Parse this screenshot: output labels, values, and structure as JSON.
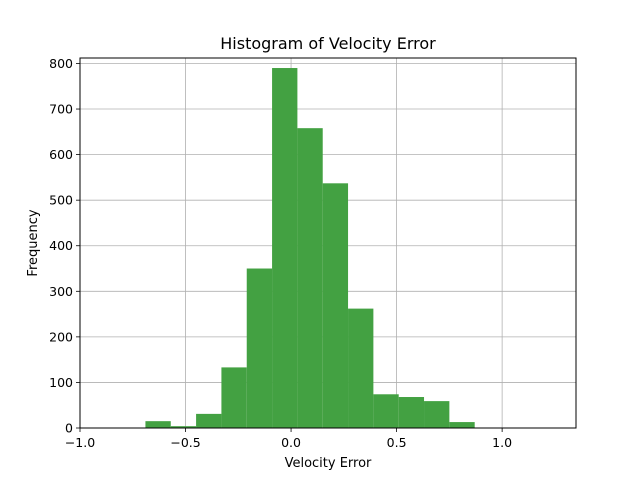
{
  "chart_data": {
    "type": "bar",
    "title": "Histogram of Velocity Error",
    "xlabel": "Velocity Error",
    "ylabel": "Frequency",
    "xlim": [
      -1.0,
      1.35
    ],
    "ylim": [
      0,
      812
    ],
    "grid": true,
    "bar_color": "#43a142",
    "x_ticks": [
      {
        "value": -1.0,
        "label": "−1.0"
      },
      {
        "value": -0.5,
        "label": "−0.5"
      },
      {
        "value": 0.0,
        "label": "0.0"
      },
      {
        "value": 0.5,
        "label": "0.5"
      },
      {
        "value": 1.0,
        "label": "1.0"
      }
    ],
    "y_ticks": [
      {
        "value": 0,
        "label": "0"
      },
      {
        "value": 100,
        "label": "100"
      },
      {
        "value": 200,
        "label": "200"
      },
      {
        "value": 300,
        "label": "300"
      },
      {
        "value": 400,
        "label": "400"
      },
      {
        "value": 500,
        "label": "500"
      },
      {
        "value": 600,
        "label": "600"
      },
      {
        "value": 700,
        "label": "700"
      },
      {
        "value": 800,
        "label": "800"
      }
    ],
    "bins": [
      {
        "x0": -0.69,
        "x1": -0.57,
        "count": 15
      },
      {
        "x0": -0.57,
        "x1": -0.45,
        "count": 4
      },
      {
        "x0": -0.45,
        "x1": -0.33,
        "count": 31
      },
      {
        "x0": -0.33,
        "x1": -0.21,
        "count": 133
      },
      {
        "x0": -0.21,
        "x1": -0.09,
        "count": 350
      },
      {
        "x0": -0.09,
        "x1": 0.03,
        "count": 790
      },
      {
        "x0": 0.03,
        "x1": 0.15,
        "count": 658
      },
      {
        "x0": 0.15,
        "x1": 0.27,
        "count": 537
      },
      {
        "x0": 0.27,
        "x1": 0.39,
        "count": 262
      },
      {
        "x0": 0.39,
        "x1": 0.51,
        "count": 74
      },
      {
        "x0": 0.51,
        "x1": 0.63,
        "count": 68
      },
      {
        "x0": 0.63,
        "x1": 0.75,
        "count": 59
      },
      {
        "x0": 0.75,
        "x1": 0.87,
        "count": 13
      },
      {
        "x0": 0.87,
        "x1": 0.99,
        "count": 1
      }
    ]
  }
}
